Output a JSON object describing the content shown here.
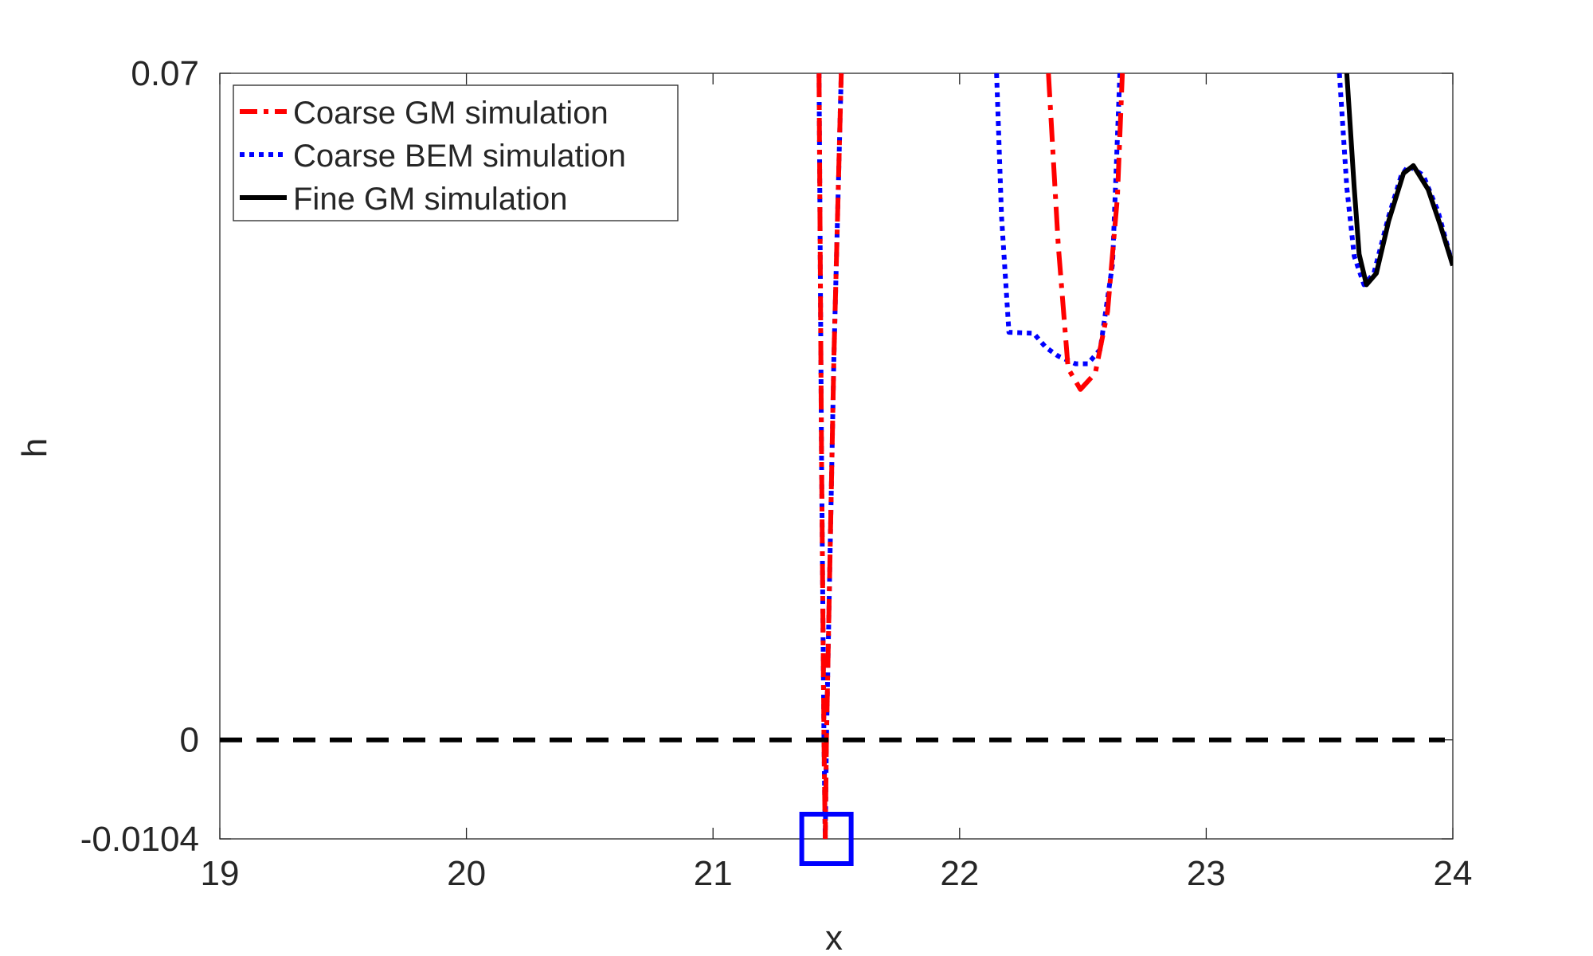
{
  "chart_data": {
    "type": "line",
    "title": "",
    "xlabel": "x",
    "ylabel": "h",
    "xlim": [
      19,
      24
    ],
    "ylim": [
      -0.0104,
      0.07
    ],
    "xticks": [
      "19",
      "20",
      "21",
      "22",
      "23",
      "24"
    ],
    "xtick_values": [
      19,
      20,
      21,
      22,
      23,
      24
    ],
    "yticks": [
      "-0.0104",
      "0",
      "0.07"
    ],
    "ytick_values": [
      -0.0104,
      0,
      0.07
    ],
    "grid": false,
    "legend_position": "top-left",
    "series": [
      {
        "name": "Coarse GM simulation",
        "color": "#ff0000",
        "style": "dashdot",
        "segments": [
          [
            [
              21.43,
              0.07
            ],
            [
              21.44,
              0.03
            ],
            [
              21.45,
              0.0
            ],
            [
              21.455,
              -0.0104
            ],
            [
              21.46,
              0.0
            ],
            [
              21.49,
              0.04
            ],
            [
              21.52,
              0.07
            ]
          ],
          [
            [
              22.36,
              0.07
            ],
            [
              22.4,
              0.052
            ],
            [
              22.44,
              0.039
            ],
            [
              22.49,
              0.0368
            ],
            [
              22.55,
              0.0385
            ],
            [
              22.6,
              0.045
            ],
            [
              22.64,
              0.057
            ],
            [
              22.66,
              0.07
            ]
          ]
        ]
      },
      {
        "name": "Coarse BEM simulation",
        "color": "#0000ff",
        "style": "dotted",
        "segments": [
          [
            [
              21.43,
              0.07
            ],
            [
              21.44,
              0.03
            ],
            [
              21.45,
              0.0
            ],
            [
              21.455,
              -0.0104
            ],
            [
              21.46,
              0.0
            ],
            [
              21.49,
              0.04
            ],
            [
              21.52,
              0.07
            ]
          ],
          [
            [
              22.15,
              0.07
            ],
            [
              22.17,
              0.055
            ],
            [
              22.2,
              0.0428
            ],
            [
              22.3,
              0.0427
            ],
            [
              22.35,
              0.0412
            ],
            [
              22.4,
              0.0403
            ],
            [
              22.47,
              0.0395
            ],
            [
              22.52,
              0.0395
            ],
            [
              22.57,
              0.041
            ],
            [
              22.62,
              0.05
            ],
            [
              22.65,
              0.07
            ]
          ],
          [
            [
              23.54,
              0.07
            ],
            [
              23.57,
              0.058
            ],
            [
              23.6,
              0.0508
            ],
            [
              23.64,
              0.0478
            ],
            [
              23.68,
              0.049
            ],
            [
              23.74,
              0.055
            ],
            [
              23.79,
              0.0592
            ],
            [
              23.82,
              0.0603
            ],
            [
              23.88,
              0.0593
            ],
            [
              23.94,
              0.0555
            ],
            [
              24.0,
              0.0498
            ]
          ]
        ]
      },
      {
        "name": "Fine GM simulation",
        "color": "#000000",
        "style": "solid",
        "segments": [
          [
            [
              23.57,
              0.07
            ],
            [
              23.6,
              0.058
            ],
            [
              23.62,
              0.051
            ],
            [
              23.65,
              0.0478
            ],
            [
              23.69,
              0.049
            ],
            [
              23.74,
              0.0545
            ],
            [
              23.8,
              0.0595
            ],
            [
              23.84,
              0.0603
            ],
            [
              23.9,
              0.0578
            ],
            [
              23.95,
              0.054
            ],
            [
              24.0,
              0.0498
            ]
          ]
        ]
      }
    ],
    "reference_line": {
      "y": 0,
      "x_range": [
        19,
        24
      ],
      "color": "#000000",
      "style": "dashed"
    },
    "marker": {
      "shape": "square",
      "x": 21.46,
      "y": -0.0104,
      "color": "#0000ff"
    }
  }
}
